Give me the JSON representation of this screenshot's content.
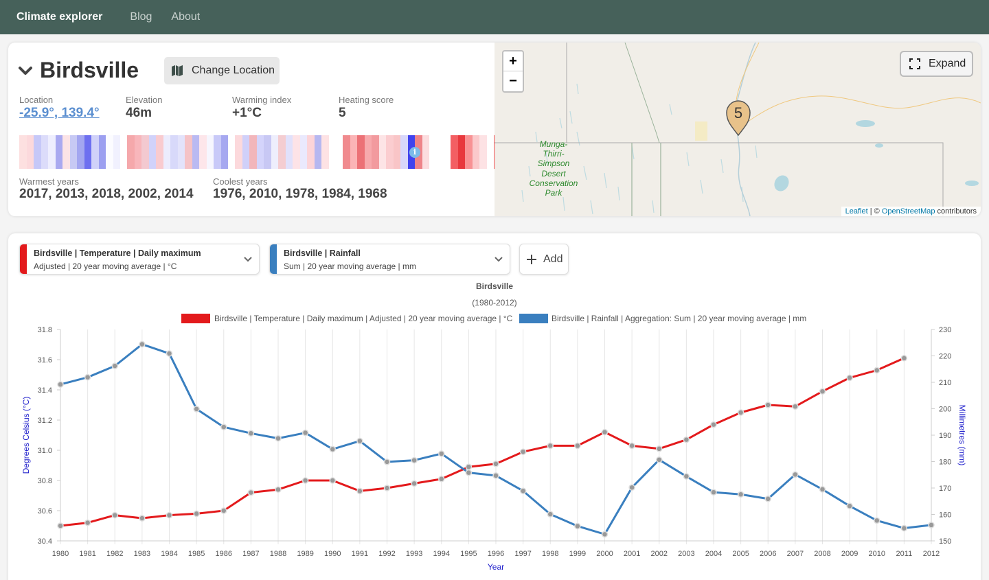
{
  "nav": {
    "brand": "Climate explorer",
    "links": [
      "Blog",
      "About"
    ]
  },
  "location": {
    "name": "Birdsville",
    "change_label": "Change Location",
    "stats": [
      {
        "label": "Location",
        "value": "-25.9°, 139.4°"
      },
      {
        "label": "Elevation",
        "value": "46m"
      },
      {
        "label": "Warming index",
        "value": "+1°C"
      },
      {
        "label": "Heating score",
        "value": "5"
      }
    ],
    "warmest_label": "Warmest years",
    "warmest_value": "2017, 2013, 2018, 2002, 2014",
    "coolest_label": "Coolest years",
    "coolest_value": "1976, 2010, 1978, 1984, 1968",
    "stripe_colors": [
      [
        "#fde0e0",
        "#fcd9dc",
        "#c6c8f8",
        "#dcdcfa",
        "#eeeefe",
        "#a9a9f0",
        "#fbe3e6",
        "#c7c9f4",
        "#a3a6f0",
        "#6d6ff0",
        "#d0d1f9",
        "#9c9ff0",
        "#fcfcff",
        "#f1f1fe"
      ],
      [
        "#f5a8ab",
        "#f8b6bb",
        "#f3c9d0",
        "#d1d2fa",
        "#f9cbcf",
        "#ececfd",
        "#d8d9fa",
        "#e3e3fb",
        "#f5c3c7",
        "#babaf2",
        "#fde6ea",
        "#f6f6fe",
        "#c8c9f8",
        "#a6a8f0"
      ],
      [
        "#fcd9dc",
        "#d0d0f9",
        "#f2b6bb",
        "#d4d4fb",
        "#c8c8f4",
        "#eeeefc",
        "#f4cdd1",
        "#e1e1fb",
        "#fde3e7",
        "#eae9fd",
        "#fcd4d8",
        "#b6b7f0",
        "#fde2e4",
        "#ffffff"
      ],
      [
        "#f08a8e",
        "#fbb4b6",
        "#ec7176",
        "#f7a9ac",
        "#f29a9e",
        "#fde4e6",
        "#fbcdd0",
        "#f9c5c7",
        "#d8d7fa",
        "#4043ee",
        "#ee8489",
        "#fcdddf",
        "#ffffff",
        "#ffffff"
      ],
      [
        "#f35f63",
        "#e8383d",
        "#f89294",
        "#fbc9cb",
        "#fde2e4",
        "#ffffff",
        "#f25255",
        "#fa4c4f",
        "#f36064",
        "#fa8f92",
        "#f69b9d",
        "#ffffff",
        "#ffffff",
        "#ffffff"
      ]
    ],
    "info_icon": "info-icon"
  },
  "map": {
    "zoom_in": "+",
    "zoom_out": "−",
    "expand_label": "Expand",
    "marker_label": "5",
    "park_label": [
      "Munga-",
      "Thirri-",
      "Simpson",
      "Desert",
      "Conservation",
      "Park"
    ],
    "attribution_leaflet": "Leaflet",
    "attribution_sep": " | © ",
    "attribution_osm": "OpenStreetMap",
    "attribution_rest": " contributors"
  },
  "selectors": [
    {
      "line1": "Birdsville | Temperature | Daily maximum",
      "line2": "Adjusted | 20 year moving average | °C",
      "color": "#e31a1c"
    },
    {
      "line1": "Birdsville | Rainfall",
      "line2": "Sum | 20 year moving average | mm",
      "color": "#3a7fbf"
    }
  ],
  "add_label": "Add",
  "chart_data": {
    "type": "line",
    "title": "Birdsville",
    "subtitle": "(1980-2012)",
    "xlabel": "Year",
    "ylabel_left": "Degrees Celsius (°C)",
    "ylabel_right": "Millimetres (mm)",
    "x": [
      1980,
      1981,
      1982,
      1983,
      1984,
      1985,
      1986,
      1987,
      1988,
      1989,
      1990,
      1991,
      1992,
      1993,
      1994,
      1995,
      1996,
      1997,
      1998,
      1999,
      2000,
      2001,
      2002,
      2003,
      2004,
      2005,
      2006,
      2007,
      2008,
      2009,
      2010,
      2011,
      2012
    ],
    "ylim_left": [
      30.4,
      31.8
    ],
    "yticks_left": [
      30.4,
      30.6,
      30.8,
      31.0,
      31.2,
      31.4,
      31.6,
      31.8
    ],
    "ylim_right": [
      150,
      230
    ],
    "yticks_right": [
      150,
      160,
      170,
      180,
      190,
      200,
      210,
      220,
      230
    ],
    "grid": "vertical",
    "legend_position": "top",
    "series": [
      {
        "name": "Birdsville | Temperature | Daily maximum | Adjusted | 20 year moving average | °C",
        "axis": "left",
        "color": "#e31a1c",
        "values": [
          30.5,
          30.52,
          30.57,
          30.55,
          30.57,
          30.58,
          30.6,
          30.72,
          30.74,
          30.8,
          30.8,
          30.73,
          30.75,
          30.78,
          30.81,
          30.89,
          30.91,
          30.99,
          31.03,
          31.03,
          31.12,
          31.03,
          31.01,
          31.07,
          31.17,
          31.25,
          31.3,
          31.29,
          31.39,
          31.48,
          31.53,
          31.61,
          null
        ]
      },
      {
        "name": "Birdsville | Rainfall | Aggregation: Sum | 20 year moving average | mm",
        "axis": "right",
        "color": "#3a7fbf",
        "values": [
          209.2,
          211.9,
          216.2,
          224.4,
          220.9,
          199.9,
          193.1,
          190.7,
          188.8,
          190.9,
          184.7,
          187.8,
          179.9,
          180.5,
          183.0,
          175.8,
          174.7,
          168.9,
          160.1,
          155.6,
          152.5,
          170.2,
          180.7,
          174.4,
          168.4,
          167.6,
          165.9,
          175.1,
          169.5,
          163.2,
          157.7,
          154.8,
          156.0
        ]
      }
    ]
  }
}
